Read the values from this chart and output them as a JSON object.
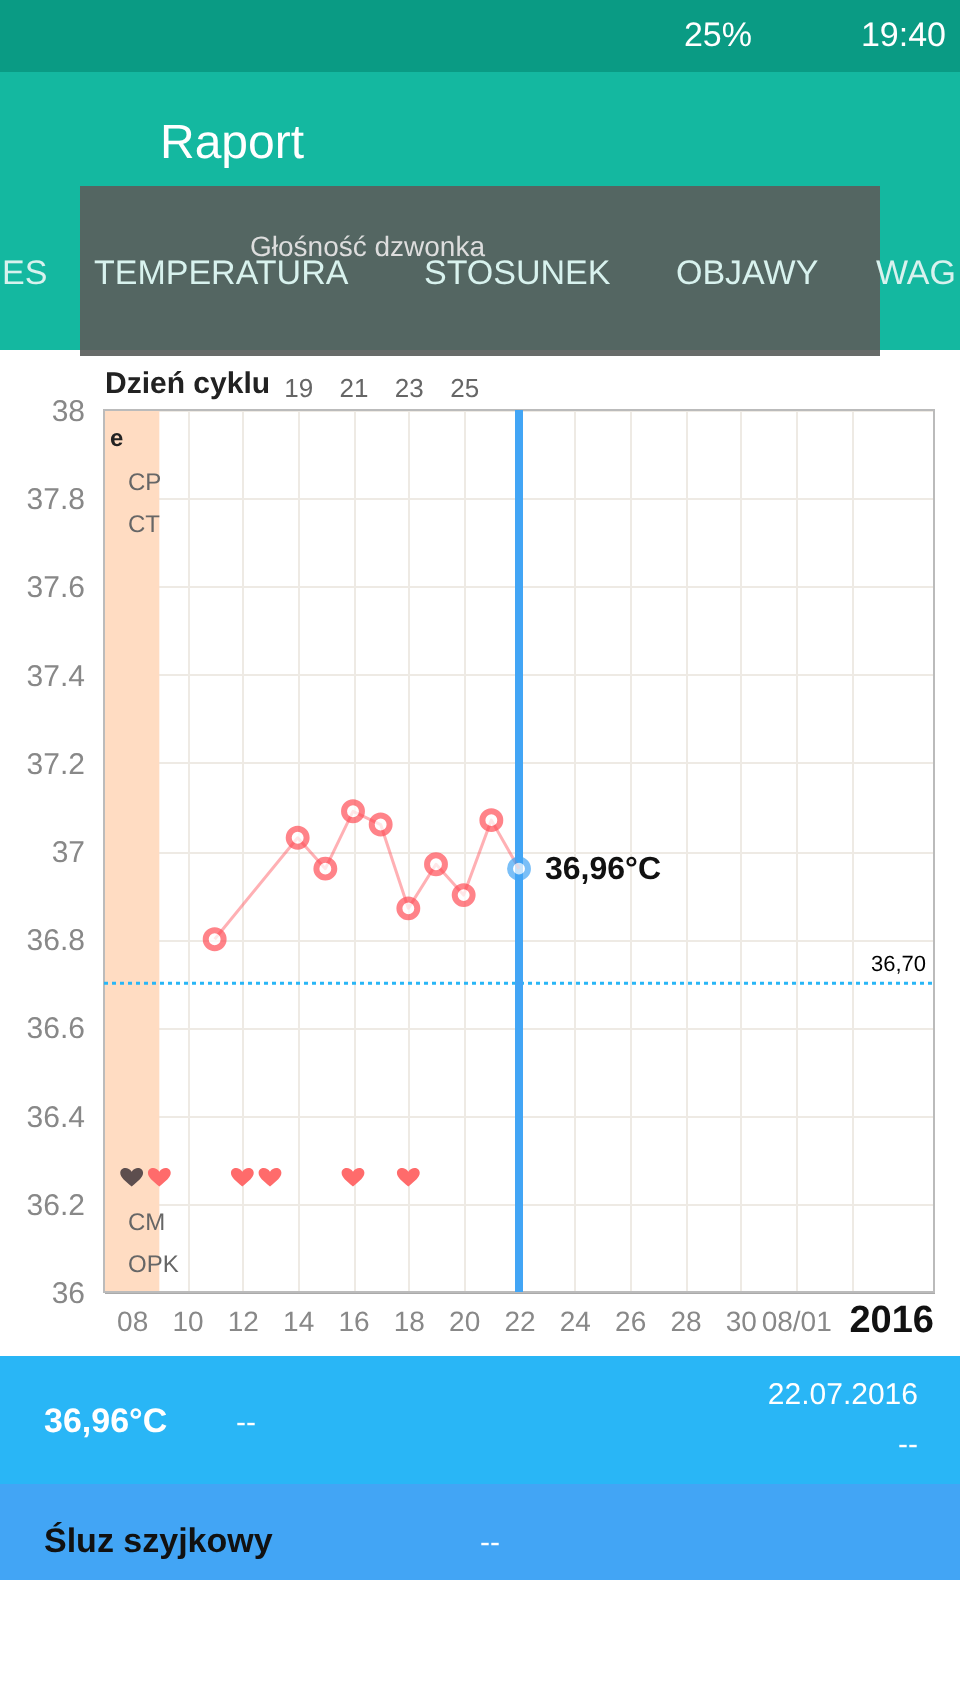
{
  "chart_data": {
    "type": "line",
    "title": "Raport",
    "x2label": "Dzień cyklu",
    "xlim": [
      7,
      37
    ],
    "ylim": [
      36,
      38
    ],
    "xticks": [
      {
        "value": 8,
        "label": "08"
      },
      10,
      12,
      14,
      16,
      18,
      20,
      22,
      24,
      26,
      28,
      30,
      {
        "value": 32,
        "label": "08/01"
      },
      {
        "value": 34,
        "label": null
      }
    ],
    "x2lim": [
      12,
      42
    ],
    "x2ticks": [
      19,
      21,
      23,
      25
    ],
    "yticks": [
      36,
      36.2,
      36.4,
      36.6,
      36.8,
      37,
      37.2,
      37.4,
      37.6,
      37.8,
      38
    ],
    "grid": true,
    "line_style": "solid",
    "series": [
      {
        "marker": "circle",
        "color": "#ff4f58",
        "x": [
          11,
          14,
          15,
          16,
          17,
          18,
          19,
          20,
          21,
          22
        ],
        "values": [
          36.8,
          37.03,
          36.96,
          37.09,
          37.06,
          36.87,
          36.97,
          36.9,
          37.07,
          36.96
        ],
        "colors": [
          "#ff4f58",
          "#ff4f58",
          "#ff4f58",
          "#ff4f58",
          "#ff4f58",
          "#ff4f58",
          "#ff4f58",
          "#ff4f58",
          "#ff4f58",
          "#42a5f5"
        ]
      },
      {
        "type": "scatter",
        "color": "#ff6b6b",
        "x": [
          8,
          9,
          12,
          13,
          16,
          18
        ],
        "values": [
          36.26,
          36.26,
          36.26,
          36.26,
          36.26,
          36.26
        ],
        "colors": [
          "#5d4e4e",
          "#ff6b6b",
          "#ff6b6b",
          "#ff6b6b",
          "#ff6b6b",
          "#ff6b6b"
        ]
      }
    ],
    "ref_lines": [
      {
        "axis": "y",
        "value": 36.7,
        "label": "36,70",
        "color": "#29b6f6",
        "line_style": "dotted"
      },
      {
        "axis": "x",
        "value": 22,
        "label": null,
        "color": "#42a5f5",
        "line_style": "solid"
      }
    ],
    "bands": [
      {
        "axis": "x",
        "from": 7,
        "to": 9,
        "label": null,
        "color": "#ffdcc2"
      }
    ],
    "annotations": [
      {
        "text": "36,96°C",
        "x": 22,
        "y": 36.96
      },
      "e",
      "CP",
      "CT",
      "CM",
      "OPK",
      "2016",
      "ES",
      "TEMPERATURA",
      "STOSUNEK",
      "OBJAWY",
      "WAG",
      "Głośność dzwonka",
      "36,96°C",
      "--",
      "22.07.2016",
      "--",
      "Śluz szyjkowy",
      "--",
      "25%",
      "19:40"
    ]
  }
}
